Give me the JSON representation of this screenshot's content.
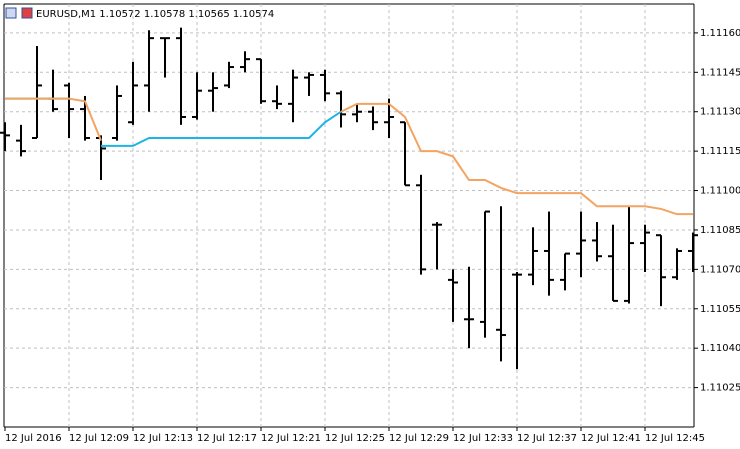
{
  "chart_data": {
    "type": "ohlc",
    "title": "EURUSD,M1  1.10572 1.10578 1.10565 1.10574",
    "categories": [
      "12 Jul 2016",
      null,
      null,
      null,
      "12 Jul 12:09",
      null,
      null,
      null,
      "12 Jul 12:13",
      null,
      null,
      null,
      "12 Jul 12:17",
      null,
      null,
      null,
      "12 Jul 12:21",
      null,
      null,
      null,
      "12 Jul 12:25",
      null,
      null,
      null,
      "12 Jul 12:29",
      null,
      null,
      null,
      "12 Jul 12:33",
      null,
      null,
      null,
      "12 Jul 12:37",
      null,
      null,
      null,
      "12 Jul 12:41",
      null,
      null,
      null,
      "12 Jul 12:45",
      null,
      null,
      null
    ],
    "open": [
      1.11122,
      1.11119,
      1.1112,
      1.11135,
      1.1114,
      1.11131,
      1.1112,
      1.1112,
      1.11126,
      1.1114,
      1.11158,
      1.11158,
      1.11128,
      1.11138,
      1.1114,
      1.11147,
      1.1115,
      1.11134,
      1.11133,
      1.11143,
      1.11144,
      1.11137,
      1.11129,
      1.1113,
      1.11126,
      1.11126,
      1.11102,
      1.11087,
      1.11066,
      1.11051,
      1.1105,
      1.11047,
      1.11068,
      1.11068,
      1.11077,
      1.11066,
      1.11076,
      1.11081,
      1.11075,
      1.11058,
      1.1108,
      1.11083,
      1.11067,
      1.11077
    ],
    "high": [
      1.11126,
      1.11125,
      1.11155,
      1.11146,
      1.11141,
      1.11136,
      1.11121,
      1.1114,
      1.11149,
      1.11161,
      1.11158,
      1.11162,
      1.11145,
      1.11145,
      1.11149,
      1.11153,
      1.1115,
      1.1114,
      1.11146,
      1.11145,
      1.11146,
      1.11138,
      1.11133,
      1.11132,
      1.11135,
      1.11126,
      1.11106,
      1.11088,
      1.1107,
      1.11071,
      1.11092,
      1.11094,
      1.11069,
      1.11086,
      1.11092,
      1.11076,
      1.11092,
      1.11088,
      1.11087,
      1.11094,
      1.11087,
      1.11083,
      1.11078,
      1.11084
    ],
    "low": [
      1.11115,
      1.11113,
      1.1112,
      1.1113,
      1.1112,
      1.11119,
      1.11104,
      1.11119,
      1.11125,
      1.1113,
      1.11143,
      1.11125,
      1.11127,
      1.1113,
      1.11139,
      1.11145,
      1.11133,
      1.11131,
      1.11126,
      1.11136,
      1.11134,
      1.11124,
      1.11126,
      1.11123,
      1.1112,
      1.11102,
      1.11068,
      1.1107,
      1.1105,
      1.1104,
      1.11044,
      1.11035,
      1.11032,
      1.11064,
      1.1106,
      1.11062,
      1.11067,
      1.11073,
      1.11058,
      1.11057,
      1.11069,
      1.11056,
      1.11066,
      1.11069
    ],
    "close": [
      1.11121,
      1.11115,
      1.1114,
      1.11131,
      1.11131,
      1.1112,
      1.11116,
      1.11136,
      1.1114,
      1.11158,
      1.11158,
      1.11128,
      1.11138,
      1.11139,
      1.11147,
      1.1115,
      1.11134,
      1.11133,
      1.11143,
      1.11144,
      1.11137,
      1.11129,
      1.1113,
      1.11126,
      1.11128,
      1.11102,
      1.1107,
      1.11087,
      1.11065,
      1.11051,
      1.11092,
      1.11045,
      1.11068,
      1.11077,
      1.11066,
      1.11076,
      1.11081,
      1.11075,
      1.11058,
      1.1108,
      1.11084,
      1.11067,
      1.11077,
      1.11083
    ],
    "bar_color": "#000000",
    "series": [
      {
        "color": "#1eb4e6",
        "values": [
          1.11135,
          1.11135,
          1.11135,
          1.11135,
          1.11135,
          null,
          1.11117,
          1.11117,
          1.11117,
          1.1112,
          1.1112,
          1.1112,
          1.1112,
          1.1112,
          1.1112,
          1.1112,
          1.1112,
          1.1112,
          1.1112,
          1.1112,
          1.11126,
          1.1113,
          null,
          null,
          null,
          null,
          null,
          null,
          null,
          null,
          null,
          null,
          null,
          null,
          null,
          null,
          null,
          null,
          null,
          null,
          null,
          null,
          null,
          null
        ]
      },
      {
        "color": "#f4a460",
        "values": [
          1.11135,
          1.11135,
          1.11135,
          1.11135,
          1.11135,
          1.11134,
          1.11119,
          null,
          null,
          null,
          null,
          null,
          null,
          null,
          null,
          null,
          null,
          null,
          null,
          null,
          null,
          1.1113,
          1.11133,
          1.11133,
          1.11133,
          1.11128,
          1.11115,
          1.11115,
          1.11113,
          1.11104,
          1.11104,
          1.11101,
          1.11099,
          1.11099,
          1.11099,
          1.11099,
          1.11099,
          1.11094,
          1.11094,
          1.11094,
          1.11094,
          1.11093,
          1.11091,
          1.11091
        ]
      }
    ],
    "ylim": [
      1.1101,
      1.11171
    ],
    "yticks": [
      {
        "value": 1.1116,
        "label": "1.11160"
      },
      {
        "value": 1.11145,
        "label": "1.11145"
      },
      {
        "value": 1.1113,
        "label": "1.11130"
      },
      {
        "value": 1.11115,
        "label": "1.11115"
      },
      {
        "value": 1.111,
        "label": "1.11100"
      },
      {
        "value": 1.11085,
        "label": "1.11085"
      },
      {
        "value": 1.1107,
        "label": "1.11070"
      },
      {
        "value": 1.11055,
        "label": "1.11055"
      },
      {
        "value": 1.1104,
        "label": "1.11040"
      },
      {
        "value": 1.11025,
        "label": "1.11025"
      }
    ],
    "grid": true
  }
}
